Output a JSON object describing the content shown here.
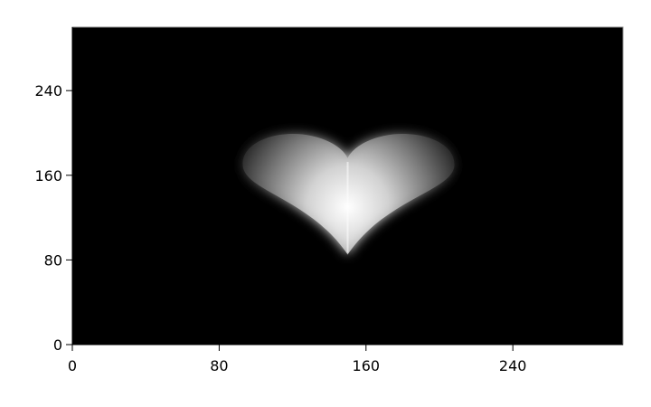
{
  "chart_data": {
    "type": "heatmap",
    "title": "",
    "xlabel": "",
    "ylabel": "",
    "xlim": [
      0,
      300
    ],
    "ylim": [
      0,
      300
    ],
    "x_ticks": [
      {
        "value": 0,
        "label": "0"
      },
      {
        "value": 80,
        "label": "80"
      },
      {
        "value": 160,
        "label": "160"
      },
      {
        "value": 240,
        "label": "240"
      }
    ],
    "y_ticks": [
      {
        "value": 0,
        "label": "0"
      },
      {
        "value": 80,
        "label": "80"
      },
      {
        "value": 160,
        "label": "160"
      },
      {
        "value": 240,
        "label": "240"
      }
    ],
    "background_value": 0,
    "shape": "heart",
    "heart": {
      "center_x": 150,
      "bottom_y": 85,
      "lobe_top_y": 200,
      "left_x": 93,
      "right_x": 208,
      "peak_x": 150,
      "peak_y": 130
    },
    "colormap": "gray",
    "colors": {
      "background": "#000000",
      "peak": "#ffffff",
      "frame": "#888888"
    },
    "grid": false,
    "legend": "none"
  }
}
